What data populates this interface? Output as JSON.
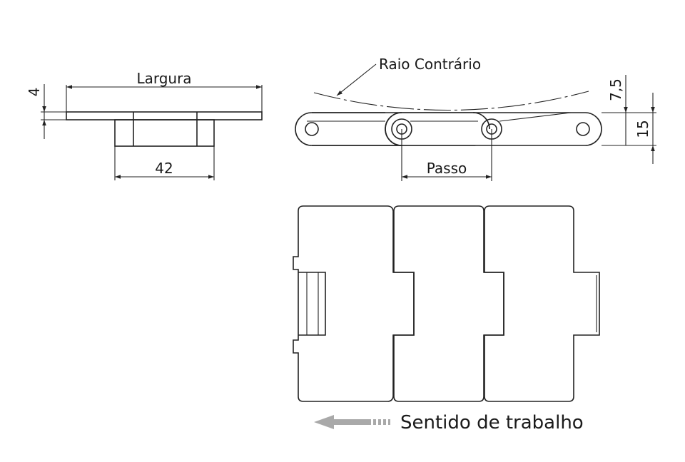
{
  "labels": {
    "largura": "Largura",
    "dim_thickness": "4",
    "dim_42": "42",
    "raio_contrario": "Raio Contrário",
    "dim_7_5": "7,5",
    "dim_15": "15",
    "passo": "Passo",
    "sentido": "Sentido de trabalho"
  },
  "colors": {
    "line": "#222222",
    "arrow": "#a9a9a9",
    "background": "#ffffff"
  },
  "icons": {
    "direction": "left-arrow-icon"
  }
}
